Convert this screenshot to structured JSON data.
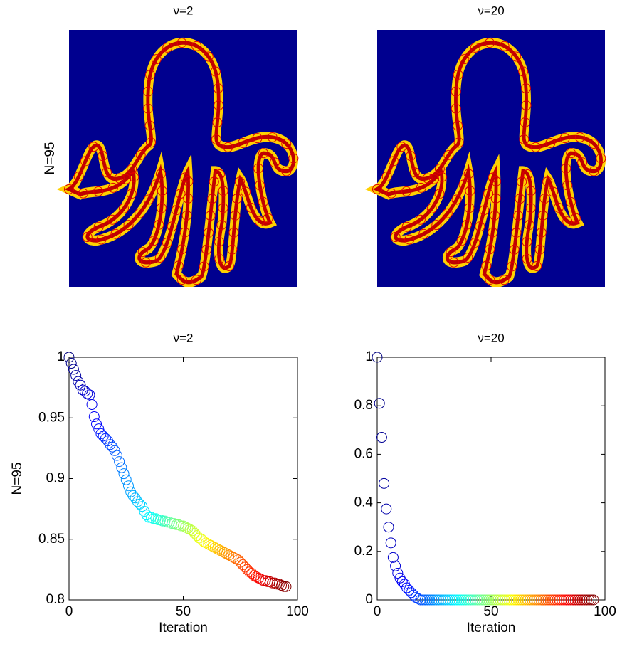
{
  "chart_data": [
    {
      "type": "image",
      "title": "ν=2",
      "ylabel": "N=95"
    },
    {
      "type": "image",
      "title": "ν=20"
    },
    {
      "type": "scatter",
      "title": "ν=2",
      "xlabel": "Iteration",
      "ylabel": "N=95",
      "colormap": "jet",
      "xlim": [
        0,
        100
      ],
      "ylim": [
        0.8,
        1
      ],
      "xticks": [
        0,
        50,
        100
      ],
      "yticks": [
        0.8,
        0.85,
        0.9,
        0.95,
        1
      ],
      "x": [
        0,
        1,
        2,
        3,
        4,
        5,
        6,
        7,
        8,
        9,
        10,
        11,
        12,
        13,
        14,
        15,
        16,
        17,
        18,
        19,
        20,
        21,
        22,
        23,
        24,
        25,
        26,
        27,
        28,
        29,
        30,
        31,
        32,
        33,
        34,
        35,
        36,
        37,
        38,
        39,
        40,
        41,
        42,
        43,
        44,
        45,
        46,
        47,
        48,
        49,
        50,
        51,
        52,
        53,
        54,
        55,
        56,
        57,
        58,
        59,
        60,
        61,
        62,
        63,
        64,
        65,
        66,
        67,
        68,
        69,
        70,
        71,
        72,
        73,
        74,
        75,
        76,
        77,
        78,
        79,
        80,
        81,
        82,
        83,
        84,
        85,
        86,
        87,
        88,
        89,
        90,
        91,
        92,
        93,
        94,
        95
      ],
      "values": [
        1.0,
        0.995,
        0.99,
        0.985,
        0.98,
        0.977,
        0.973,
        0.972,
        0.97,
        0.969,
        0.961,
        0.951,
        0.945,
        0.941,
        0.937,
        0.935,
        0.933,
        0.931,
        0.928,
        0.926,
        0.923,
        0.919,
        0.914,
        0.909,
        0.904,
        0.899,
        0.894,
        0.889,
        0.886,
        0.884,
        0.881,
        0.879,
        0.877,
        0.873,
        0.87,
        0.868,
        0.868,
        0.867,
        0.867,
        0.866,
        0.866,
        0.865,
        0.865,
        0.864,
        0.864,
        0.863,
        0.863,
        0.862,
        0.862,
        0.861,
        0.861,
        0.86,
        0.859,
        0.858,
        0.857,
        0.855,
        0.853,
        0.851,
        0.85,
        0.848,
        0.847,
        0.846,
        0.845,
        0.844,
        0.843,
        0.842,
        0.841,
        0.84,
        0.839,
        0.838,
        0.837,
        0.836,
        0.835,
        0.834,
        0.833,
        0.831,
        0.829,
        0.827,
        0.825,
        0.823,
        0.822,
        0.82,
        0.819,
        0.818,
        0.817,
        0.816,
        0.816,
        0.815,
        0.815,
        0.814,
        0.814,
        0.813,
        0.813,
        0.812,
        0.811,
        0.811
      ]
    },
    {
      "type": "scatter",
      "title": "ν=20",
      "xlabel": "Iteration",
      "colormap": "jet",
      "xlim": [
        0,
        100
      ],
      "ylim": [
        0,
        1
      ],
      "xticks": [
        0,
        50,
        100
      ],
      "yticks": [
        0,
        0.2,
        0.4,
        0.6,
        0.8,
        1
      ],
      "x": [
        0,
        1,
        2,
        3,
        4,
        5,
        6,
        7,
        8,
        9,
        10,
        11,
        12,
        13,
        14,
        15,
        16,
        17,
        18,
        19,
        20,
        21,
        22,
        23,
        24,
        25,
        26,
        27,
        28,
        29,
        30,
        31,
        32,
        33,
        34,
        35,
        36,
        37,
        38,
        39,
        40,
        41,
        42,
        43,
        44,
        45,
        46,
        47,
        48,
        49,
        50,
        51,
        52,
        53,
        54,
        55,
        56,
        57,
        58,
        59,
        60,
        61,
        62,
        63,
        64,
        65,
        66,
        67,
        68,
        69,
        70,
        71,
        72,
        73,
        74,
        75,
        76,
        77,
        78,
        79,
        80,
        81,
        82,
        83,
        84,
        85,
        86,
        87,
        88,
        89,
        90,
        91,
        92,
        93,
        94,
        95
      ],
      "values": [
        1.0,
        0.81,
        0.67,
        0.48,
        0.375,
        0.3,
        0.235,
        0.175,
        0.14,
        0.11,
        0.09,
        0.075,
        0.065,
        0.05,
        0.04,
        0.03,
        0.02,
        0.01,
        0.005,
        0,
        0,
        0,
        0,
        0,
        0,
        0,
        0,
        0,
        0,
        0,
        0,
        0,
        0,
        0,
        0,
        0,
        0,
        0,
        0,
        0,
        0,
        0,
        0,
        0,
        0,
        0,
        0,
        0,
        0,
        0,
        0,
        0,
        0,
        0,
        0,
        0,
        0,
        0,
        0,
        0,
        0,
        0,
        0,
        0,
        0,
        0,
        0,
        0,
        0,
        0,
        0,
        0,
        0,
        0,
        0,
        0,
        0,
        0,
        0,
        0,
        0,
        0,
        0,
        0,
        0,
        0,
        0,
        0,
        0,
        0,
        0,
        0,
        0,
        0,
        0,
        0
      ]
    }
  ]
}
